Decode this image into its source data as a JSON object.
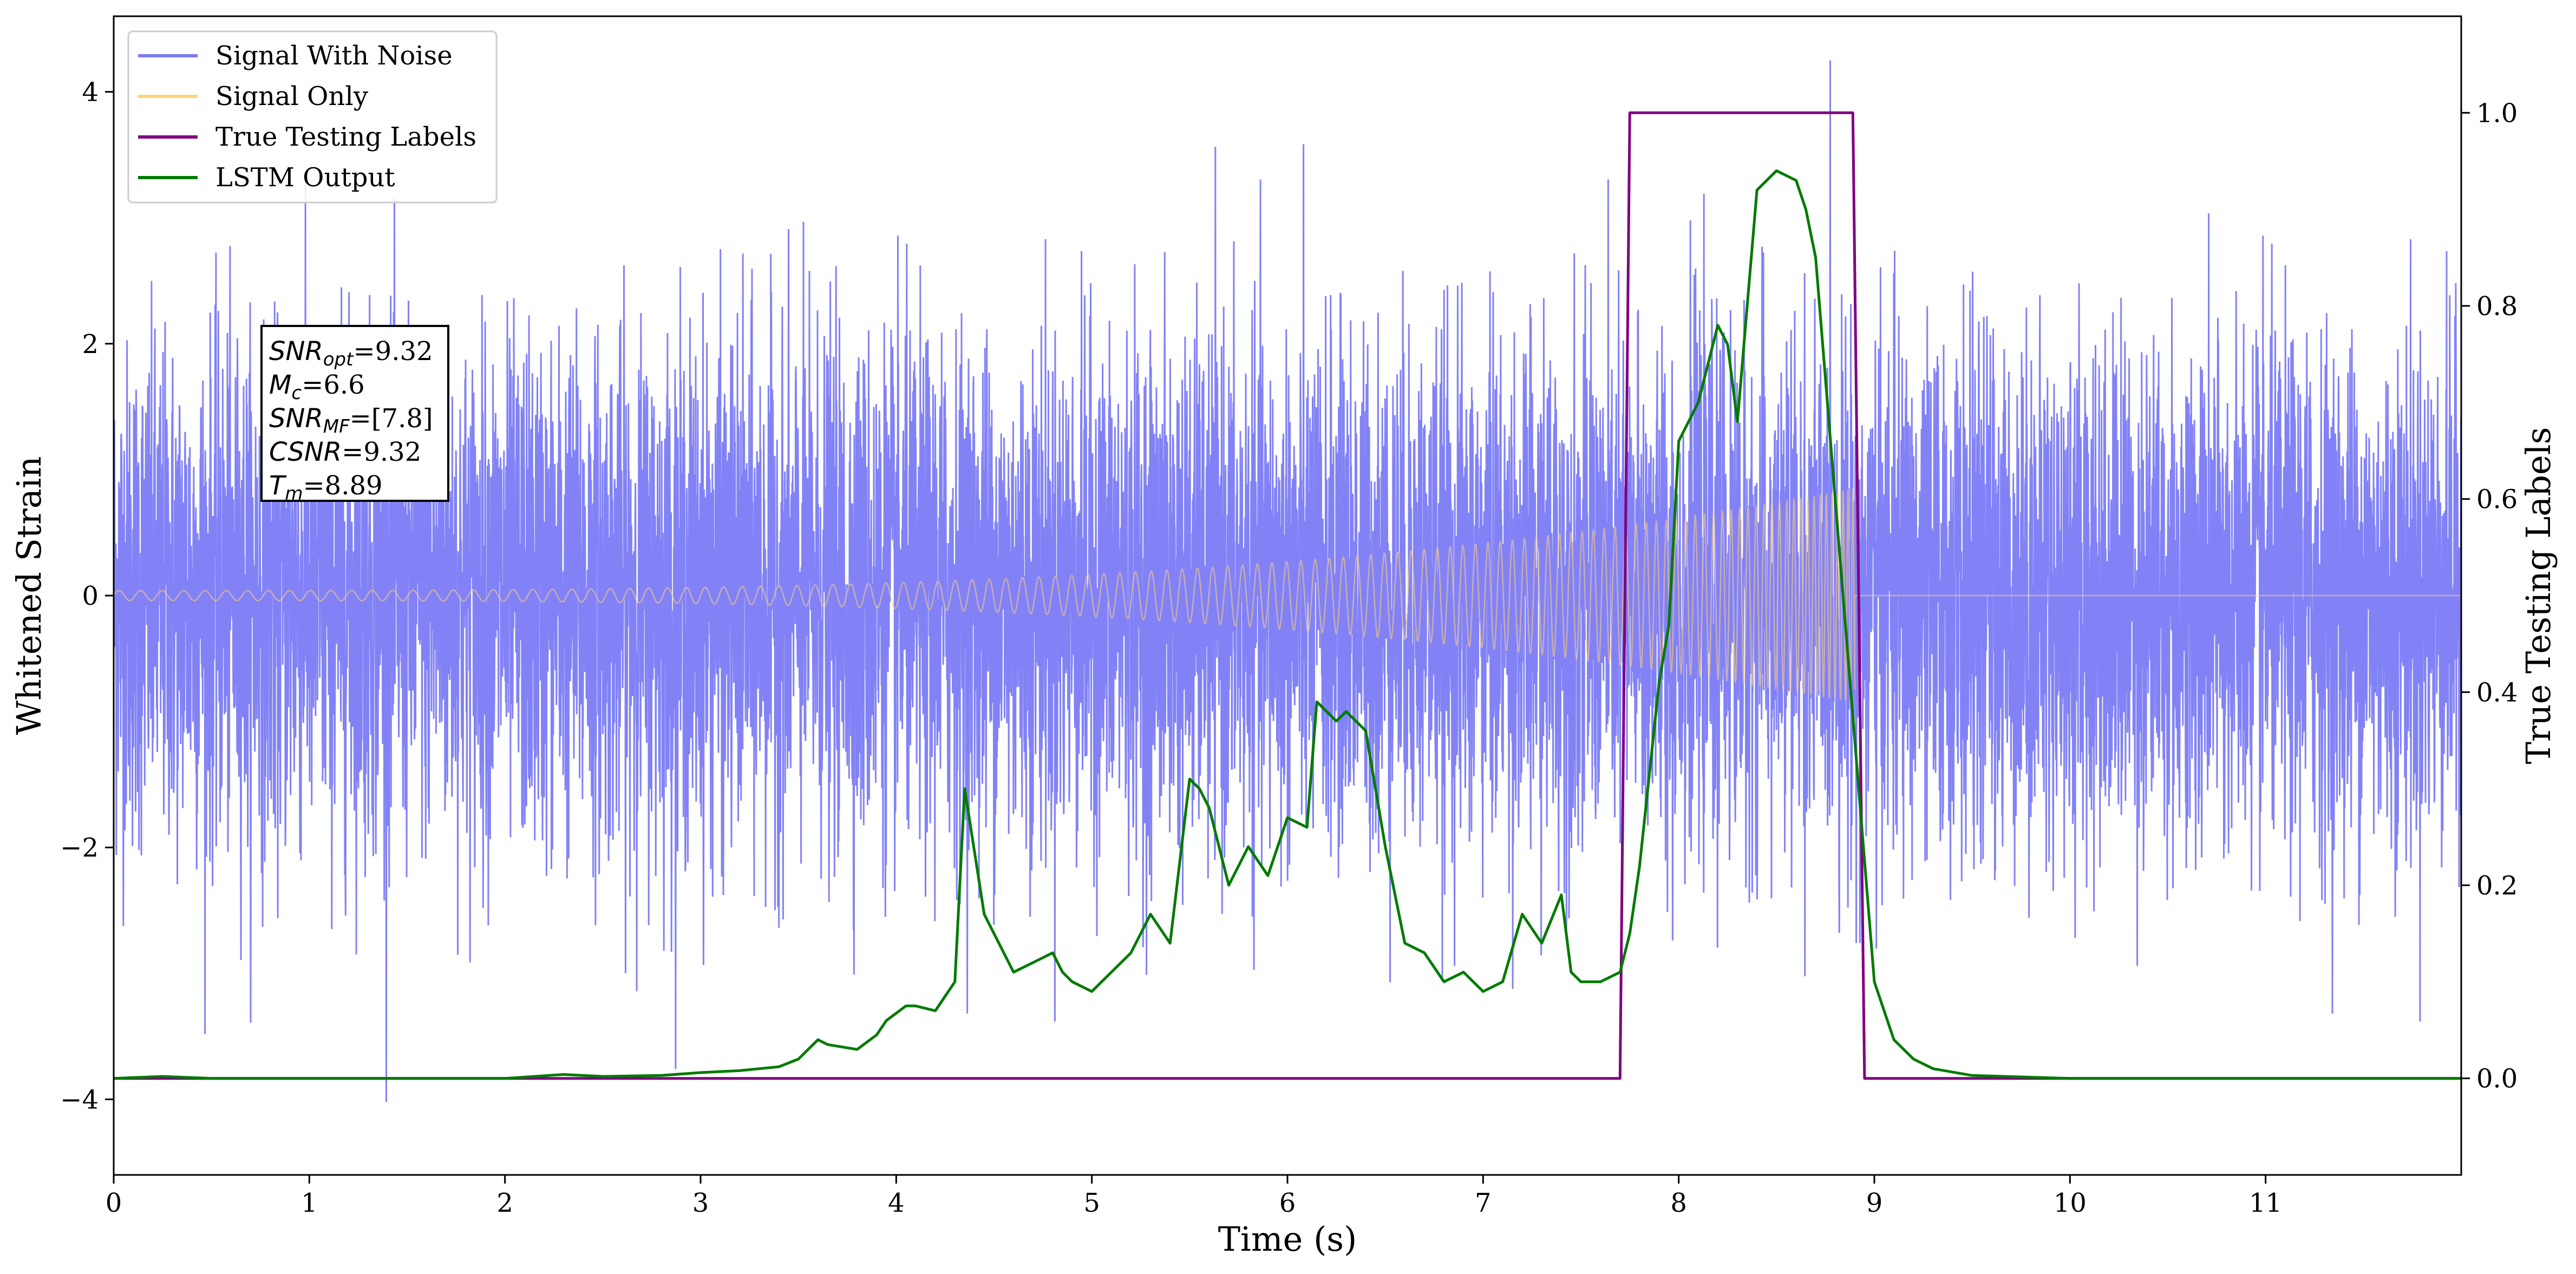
{
  "chart_data": {
    "type": "line",
    "title": "",
    "xlabel": "Time (s)",
    "ylabel_left": "Whitened Strain",
    "ylabel_right": "True Testing Labels",
    "xlim": [
      0,
      12
    ],
    "ylim_left": [
      -4.6,
      4.6
    ],
    "ylim_right": [
      -0.1,
      1.1
    ],
    "xticks": [
      "0",
      "1",
      "2",
      "3",
      "4",
      "5",
      "6",
      "7",
      "8",
      "9",
      "10",
      "11"
    ],
    "yticks_left": [
      "−4",
      "−2",
      "0",
      "2",
      "4"
    ],
    "yticks_right": [
      "0.0",
      "0.2",
      "0.4",
      "0.6",
      "0.8",
      "1.0"
    ],
    "grid": false,
    "legend_position": "top-left",
    "legend": [
      {
        "name": "Signal With Noise",
        "color": "#7b7bf5"
      },
      {
        "name": "Signal Only",
        "color": "#ffd27a"
      },
      {
        "name": "True Testing Labels",
        "color": "#800080"
      },
      {
        "name": "LSTM Output",
        "color": "#007a00"
      }
    ],
    "annotation": [
      {
        "base": "SNR",
        "sub": "opt",
        "value": "=9.32"
      },
      {
        "base": "M",
        "sub": "c",
        "value": "=6.6"
      },
      {
        "base": "SNR",
        "sub": "MF",
        "value": "=[7.8]"
      },
      {
        "base": "CSNR",
        "sub": "",
        "value": "=9.32"
      },
      {
        "base": "T",
        "sub": "m",
        "value": "=8.89"
      }
    ],
    "series": [
      {
        "name": "Signal With Noise",
        "axis": "left",
        "kind": "noise",
        "noise_std": 1.0,
        "noise_range": [
          -4.2,
          4.25
        ],
        "color": "#7b7bf5"
      },
      {
        "name": "Signal Only",
        "axis": "left",
        "kind": "chirp",
        "chirp_end_time": 8.9,
        "amplitude_start": 0.04,
        "amplitude_end": 0.85,
        "color": "#ffd27a"
      },
      {
        "name": "True Testing Labels",
        "axis": "right",
        "color": "#800080",
        "x": [
          0,
          7.7,
          7.75,
          8.89,
          8.95,
          12
        ],
        "y": [
          0,
          0,
          1,
          1,
          0,
          0
        ]
      },
      {
        "name": "LSTM Output",
        "axis": "right",
        "color": "#007a00",
        "x": [
          0,
          0.25,
          0.5,
          1.0,
          2.0,
          2.3,
          2.5,
          2.8,
          3.0,
          3.2,
          3.4,
          3.5,
          3.6,
          3.65,
          3.8,
          3.9,
          3.95,
          4.05,
          4.1,
          4.2,
          4.3,
          4.35,
          4.45,
          4.5,
          4.6,
          4.7,
          4.8,
          4.85,
          4.9,
          5.0,
          5.05,
          5.1,
          5.2,
          5.3,
          5.4,
          5.5,
          5.55,
          5.6,
          5.7,
          5.8,
          5.9,
          6.0,
          6.1,
          6.15,
          6.25,
          6.3,
          6.4,
          6.5,
          6.6,
          6.7,
          6.8,
          6.9,
          7.0,
          7.1,
          7.2,
          7.3,
          7.4,
          7.45,
          7.5,
          7.6,
          7.7,
          7.75,
          7.8,
          7.9,
          7.95,
          8.0,
          8.1,
          8.2,
          8.25,
          8.3,
          8.4,
          8.5,
          8.6,
          8.65,
          8.7,
          8.8,
          8.9,
          9.0,
          9.1,
          9.2,
          9.3,
          9.5,
          10.0,
          12.0
        ],
        "y": [
          0.0,
          0.002,
          0.0,
          0.0,
          0.0,
          0.004,
          0.002,
          0.003,
          0.006,
          0.008,
          0.012,
          0.02,
          0.04,
          0.035,
          0.03,
          0.045,
          0.06,
          0.075,
          0.075,
          0.07,
          0.1,
          0.3,
          0.17,
          0.15,
          0.11,
          0.12,
          0.13,
          0.11,
          0.1,
          0.09,
          0.1,
          0.11,
          0.13,
          0.17,
          0.14,
          0.31,
          0.3,
          0.28,
          0.2,
          0.24,
          0.21,
          0.27,
          0.26,
          0.39,
          0.37,
          0.38,
          0.36,
          0.24,
          0.14,
          0.13,
          0.1,
          0.11,
          0.09,
          0.1,
          0.17,
          0.14,
          0.19,
          0.11,
          0.1,
          0.1,
          0.11,
          0.15,
          0.22,
          0.41,
          0.47,
          0.66,
          0.7,
          0.78,
          0.76,
          0.68,
          0.92,
          0.94,
          0.93,
          0.9,
          0.85,
          0.6,
          0.35,
          0.1,
          0.04,
          0.02,
          0.01,
          0.003,
          0.0,
          0.0
        ]
      }
    ]
  }
}
